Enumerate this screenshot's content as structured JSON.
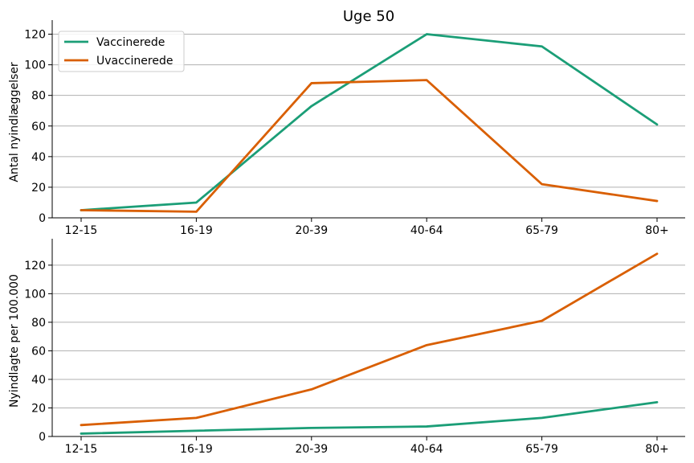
{
  "colors": {
    "vaccinated": "#1b9e77",
    "unvaccinated": "#d95f02",
    "grid": "#b0b0b0",
    "axis": "#000000"
  },
  "chart_data": [
    {
      "type": "line",
      "title": "Uge 50",
      "ylabel": "Antal nyindlæggelser",
      "xlabel": "",
      "categories": [
        "12-15",
        "16-19",
        "20-39",
        "40-64",
        "65-79",
        "80+"
      ],
      "ylim": [
        0,
        125
      ],
      "yticks": [
        0,
        20,
        40,
        60,
        80,
        100,
        120
      ],
      "grid": "horizontal",
      "legend": "upper-left",
      "series": [
        {
          "name": "Vaccinerede",
          "values": [
            5,
            10,
            73,
            120,
            112,
            61
          ]
        },
        {
          "name": "Uvaccinerede",
          "values": [
            5,
            4,
            88,
            90,
            22,
            11
          ]
        }
      ]
    },
    {
      "type": "line",
      "title": "",
      "ylabel": "Nyindlagte per 100.000",
      "xlabel": "",
      "categories": [
        "12-15",
        "16-19",
        "20-39",
        "40-64",
        "65-79",
        "80+"
      ],
      "ylim": [
        0,
        134
      ],
      "yticks": [
        0,
        20,
        40,
        60,
        80,
        100,
        120
      ],
      "grid": "horizontal",
      "series": [
        {
          "name": "Vaccinerede",
          "values": [
            2,
            4,
            6,
            7,
            13,
            24
          ]
        },
        {
          "name": "Uvaccinerede",
          "values": [
            8,
            13,
            33,
            64,
            81,
            128
          ]
        }
      ]
    }
  ]
}
